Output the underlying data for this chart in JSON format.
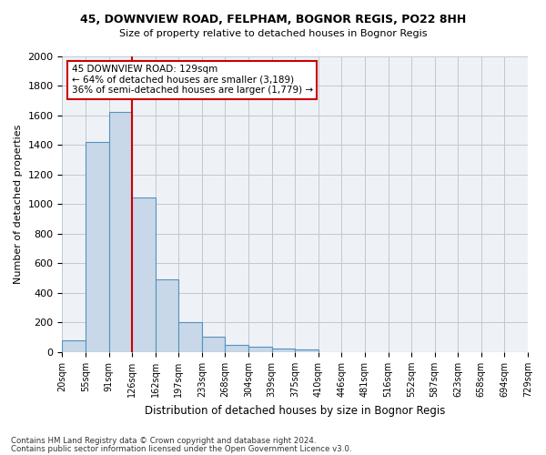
{
  "title_line1": "45, DOWNVIEW ROAD, FELPHAM, BOGNOR REGIS, PO22 8HH",
  "title_line2": "Size of property relative to detached houses in Bognor Regis",
  "xlabel": "Distribution of detached houses by size in Bognor Regis",
  "ylabel": "Number of detached properties",
  "bar_values": [
    80,
    1420,
    1620,
    1045,
    490,
    205,
    105,
    48,
    38,
    25,
    18,
    0,
    0,
    0,
    0,
    0,
    0,
    0,
    0,
    0
  ],
  "bar_labels": [
    "20sqm",
    "55sqm",
    "91sqm",
    "126sqm",
    "162sqm",
    "197sqm",
    "233sqm",
    "268sqm",
    "304sqm",
    "339sqm",
    "375sqm",
    "410sqm",
    "446sqm",
    "481sqm",
    "516sqm",
    "552sqm",
    "587sqm",
    "623sqm",
    "658sqm",
    "694sqm",
    "729sqm"
  ],
  "bar_color": "#c8d8e8",
  "bar_edgecolor": "#5590c0",
  "red_line_index": 3,
  "annotation_title": "45 DOWNVIEW ROAD: 129sqm",
  "annotation_line2": "← 64% of detached houses are smaller (3,189)",
  "annotation_line3": "36% of semi-detached houses are larger (1,779) →",
  "annotation_box_color": "#ffffff",
  "annotation_box_edgecolor": "#cc0000",
  "ylim": [
    0,
    2000
  ],
  "yticks": [
    0,
    200,
    400,
    600,
    800,
    1000,
    1200,
    1400,
    1600,
    1800,
    2000
  ],
  "footer_line1": "Contains HM Land Registry data © Crown copyright and database right 2024.",
  "footer_line2": "Contains public sector information licensed under the Open Government Licence v3.0.",
  "background_color": "#ffffff",
  "axes_facecolor": "#eef2f7",
  "grid_color": "#c0c8d0"
}
